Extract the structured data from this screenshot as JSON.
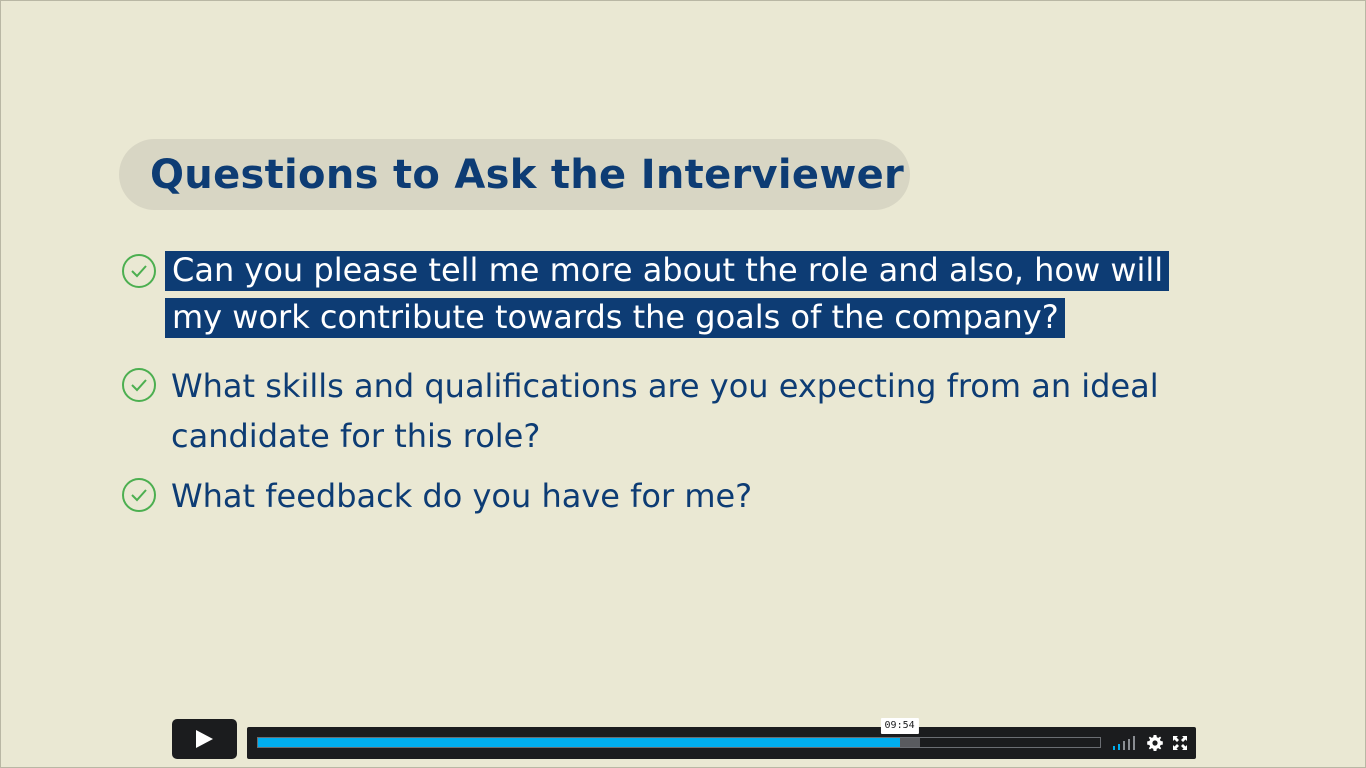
{
  "slide": {
    "title": "Questions to Ask the Interviewer",
    "bullets": [
      {
        "lines": [
          "Can you please tell me more about the role and also, how will",
          "my work contribute towards the goals of the company?"
        ],
        "highlighted": true
      },
      {
        "lines": [
          "What skills and qualifications are you expecting from an ideal",
          "candidate for this role?"
        ],
        "highlighted": false
      },
      {
        "lines": [
          "What feedback do you have for me?"
        ],
        "highlighted": false
      }
    ]
  },
  "player": {
    "play_icon": "play-icon",
    "current_time": "09:54",
    "played_fraction": 0.762,
    "buffered_fraction": 0.786,
    "volume_level": 0.4,
    "settings_icon": "gear-icon",
    "fullscreen_icon": "fullscreen-icon"
  },
  "colors": {
    "background": "#eae8d3",
    "title_pill": "#d8d6c4",
    "text": "#0d3c74",
    "highlight": "#0d3c74",
    "check": "#4caf50",
    "progress": "#00adef",
    "player_bg": "#1b1c1e"
  }
}
